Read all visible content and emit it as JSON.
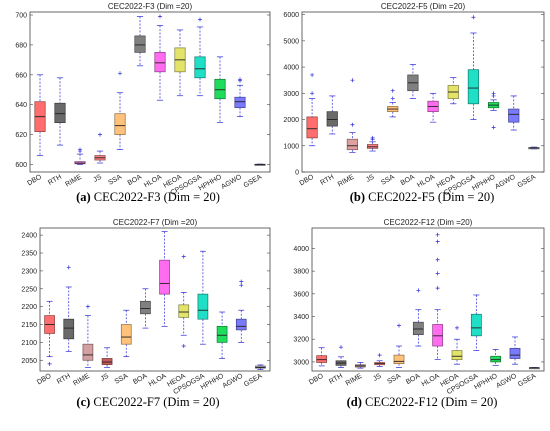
{
  "chart_data": [
    {
      "type": "box",
      "title": "CEC2022-F3 (Dim =20)",
      "caption_label": "(a)",
      "caption_text": "CEC2022-F3 (Dim = 20)",
      "categories": [
        "DBO",
        "RTH",
        "RIME",
        "JS",
        "SSA",
        "BOA",
        "HLOA",
        "HEOA",
        "CPSOGSA",
        "HPHHO",
        "AGWO",
        "GSEA"
      ],
      "ylim": [
        595,
        702
      ],
      "yticks": [
        600,
        620,
        640,
        660,
        680,
        700
      ],
      "boxes": [
        {
          "q1": 622,
          "median": 632,
          "q3": 642,
          "wl": 606,
          "wh": 660,
          "outliers": []
        },
        {
          "q1": 628,
          "median": 634,
          "q3": 641,
          "wl": 613,
          "wh": 658,
          "outliers": []
        },
        {
          "q1": 600.5,
          "median": 601,
          "q3": 602,
          "wl": 600,
          "wh": 607,
          "outliers": [
            609,
            610
          ]
        },
        {
          "q1": 603,
          "median": 604.5,
          "q3": 606,
          "wl": 601,
          "wh": 609,
          "outliers": [
            620
          ]
        },
        {
          "q1": 620,
          "median": 626,
          "q3": 634,
          "wl": 610,
          "wh": 648,
          "outliers": [
            661
          ]
        },
        {
          "q1": 675,
          "median": 680,
          "q3": 686,
          "wl": 666,
          "wh": 699,
          "outliers": []
        },
        {
          "q1": 662,
          "median": 668,
          "q3": 675,
          "wl": 643,
          "wh": 693,
          "outliers": [
            699
          ]
        },
        {
          "q1": 662,
          "median": 670,
          "q3": 678,
          "wl": 646,
          "wh": 690,
          "outliers": []
        },
        {
          "q1": 658,
          "median": 664,
          "q3": 672,
          "wl": 646,
          "wh": 692,
          "outliers": [
            697
          ]
        },
        {
          "q1": 644,
          "median": 650,
          "q3": 657,
          "wl": 628,
          "wh": 672,
          "outliers": []
        },
        {
          "q1": 638,
          "median": 642,
          "q3": 645,
          "wl": 632,
          "wh": 653,
          "outliers": [
            656,
            657
          ]
        },
        {
          "q1": 599.8,
          "median": 600,
          "q3": 600.2,
          "wl": 599.7,
          "wh": 600.3,
          "outliers": []
        }
      ],
      "colors": [
        "#ff6e6e",
        "#6a6a6a",
        "#ff8fe2",
        "#ff8080",
        "#ffc27a",
        "#808080",
        "#ff6cf0",
        "#e3e36a",
        "#1fe0c6",
        "#1fdc5c",
        "#7a7aff",
        "#aaaaaa"
      ]
    },
    {
      "type": "box",
      "title": "CEC2022-F5 (Dim =20)",
      "caption_label": "(b)",
      "caption_text": "CEC2022-F5 (Dim = 20)",
      "categories": [
        "DBO",
        "RTH",
        "RIME",
        "JS",
        "SSA",
        "BOA",
        "HLOA",
        "HEOA",
        "CPSOGSA",
        "HPHHO",
        "AGWO",
        "GSEA"
      ],
      "ylim": [
        0,
        6100
      ],
      "yticks": [
        0,
        1000,
        2000,
        3000,
        4000,
        5000,
        6000
      ],
      "boxes": [
        {
          "q1": 1300,
          "median": 1650,
          "q3": 2100,
          "wl": 1000,
          "wh": 2800,
          "outliers": [
            3000,
            3700
          ]
        },
        {
          "q1": 1750,
          "median": 2000,
          "q3": 2300,
          "wl": 1450,
          "wh": 2900,
          "outliers": []
        },
        {
          "q1": 850,
          "median": 1000,
          "q3": 1250,
          "wl": 750,
          "wh": 1500,
          "outliers": [
            1800,
            3500
          ]
        },
        {
          "q1": 900,
          "median": 960,
          "q3": 1050,
          "wl": 800,
          "wh": 1150,
          "outliers": [
            1250,
            1300
          ]
        },
        {
          "q1": 2300,
          "median": 2400,
          "q3": 2500,
          "wl": 2100,
          "wh": 2650,
          "outliers": [
            2800,
            3100
          ]
        },
        {
          "q1": 3100,
          "median": 3400,
          "q3": 3700,
          "wl": 2800,
          "wh": 4100,
          "outliers": []
        },
        {
          "q1": 2300,
          "median": 2500,
          "q3": 2700,
          "wl": 1900,
          "wh": 3000,
          "outliers": []
        },
        {
          "q1": 2800,
          "median": 3050,
          "q3": 3300,
          "wl": 2600,
          "wh": 3600,
          "outliers": []
        },
        {
          "q1": 2600,
          "median": 3200,
          "q3": 3900,
          "wl": 2000,
          "wh": 5300,
          "outliers": [
            5900
          ]
        },
        {
          "q1": 2450,
          "median": 2550,
          "q3": 2650,
          "wl": 2350,
          "wh": 2750,
          "outliers": [
            1700,
            2900,
            3000
          ]
        },
        {
          "q1": 1900,
          "median": 2200,
          "q3": 2400,
          "wl": 1600,
          "wh": 2900,
          "outliers": []
        },
        {
          "q1": 900,
          "median": 920,
          "q3": 930,
          "wl": 880,
          "wh": 950,
          "outliers": []
        }
      ],
      "colors": [
        "#ff6e6e",
        "#6a6a6a",
        "#e0a0a0",
        "#ff8080",
        "#ffc27a",
        "#808080",
        "#ff6cf0",
        "#e3e36a",
        "#1fe0c6",
        "#1fdc5c",
        "#7a7aff",
        "#aaaaaa"
      ]
    },
    {
      "type": "box",
      "title": "CEC2022-F7 (Dim =20)",
      "caption_label": "(c)",
      "caption_text": "CEC2022-F7 (Dim = 20)",
      "categories": [
        "DBO",
        "RTH",
        "RIME",
        "JS",
        "SSA",
        "BOA",
        "HLOA",
        "HEOA",
        "CPSOGSA",
        "HPHHO",
        "AGWO",
        "GSEA"
      ],
      "ylim": [
        2020,
        2420
      ],
      "yticks": [
        2050,
        2100,
        2150,
        2200,
        2250,
        2300,
        2350,
        2400
      ],
      "boxes": [
        {
          "q1": 2125,
          "median": 2150,
          "q3": 2175,
          "wl": 2060,
          "wh": 2215,
          "outliers": [
            2040
          ]
        },
        {
          "q1": 2110,
          "median": 2140,
          "q3": 2165,
          "wl": 2075,
          "wh": 2255,
          "outliers": [
            2310
          ]
        },
        {
          "q1": 2050,
          "median": 2065,
          "q3": 2095,
          "wl": 2030,
          "wh": 2175,
          "outliers": [
            2200
          ]
        },
        {
          "q1": 2038,
          "median": 2045,
          "q3": 2055,
          "wl": 2030,
          "wh": 2085,
          "outliers": []
        },
        {
          "q1": 2095,
          "median": 2115,
          "q3": 2150,
          "wl": 2060,
          "wh": 2190,
          "outliers": []
        },
        {
          "q1": 2180,
          "median": 2195,
          "q3": 2215,
          "wl": 2140,
          "wh": 2250,
          "outliers": []
        },
        {
          "q1": 2235,
          "median": 2265,
          "q3": 2330,
          "wl": 2145,
          "wh": 2410,
          "outliers": []
        },
        {
          "q1": 2170,
          "median": 2185,
          "q3": 2205,
          "wl": 2120,
          "wh": 2240,
          "outliers": [
            2090,
            2340
          ]
        },
        {
          "q1": 2165,
          "median": 2190,
          "q3": 2235,
          "wl": 2095,
          "wh": 2355,
          "outliers": []
        },
        {
          "q1": 2100,
          "median": 2120,
          "q3": 2145,
          "wl": 2055,
          "wh": 2185,
          "outliers": []
        },
        {
          "q1": 2135,
          "median": 2145,
          "q3": 2165,
          "wl": 2100,
          "wh": 2190,
          "outliers": [
            2260,
            2270
          ]
        },
        {
          "q1": 2028,
          "median": 2030,
          "q3": 2034,
          "wl": 2024,
          "wh": 2037,
          "outliers": []
        }
      ],
      "colors": [
        "#ff6e6e",
        "#6a6a6a",
        "#d2a0a0",
        "#c85a5a",
        "#ffc27a",
        "#808080",
        "#ff6cf0",
        "#e3e36a",
        "#1fe0c6",
        "#1fdc5c",
        "#7a7aff",
        "#aaaaaa"
      ]
    },
    {
      "type": "box",
      "title": "CEC2022-F12 (Dim =20)",
      "caption_label": "(d)",
      "caption_text": "CEC2022-F12 (Dim = 20)",
      "categories": [
        "DBO",
        "RTH",
        "RIME",
        "JS",
        "SSA",
        "BOA",
        "HLOA",
        "HEOA",
        "CPSOGSA",
        "HPHHO",
        "AGWO",
        "GSEA"
      ],
      "ylim": [
        2920,
        4180
      ],
      "yticks": [
        3000,
        3200,
        3400,
        3600,
        3800,
        4000
      ],
      "boxes": [
        {
          "q1": 2995,
          "median": 3020,
          "q3": 3055,
          "wl": 2965,
          "wh": 3125,
          "outliers": []
        },
        {
          "q1": 2970,
          "median": 2990,
          "q3": 3010,
          "wl": 2950,
          "wh": 3045,
          "outliers": [
            3130
          ]
        },
        {
          "q1": 2955,
          "median": 2965,
          "q3": 2975,
          "wl": 2945,
          "wh": 2995,
          "outliers": []
        },
        {
          "q1": 2975,
          "median": 2985,
          "q3": 2995,
          "wl": 2960,
          "wh": 3010,
          "outliers": [
            3060
          ]
        },
        {
          "q1": 2985,
          "median": 3005,
          "q3": 3060,
          "wl": 2950,
          "wh": 3140,
          "outliers": [
            3320
          ]
        },
        {
          "q1": 3240,
          "median": 3290,
          "q3": 3350,
          "wl": 3140,
          "wh": 3460,
          "outliers": [
            3630
          ]
        },
        {
          "q1": 3140,
          "median": 3230,
          "q3": 3330,
          "wl": 3020,
          "wh": 3460,
          "outliers": [
            3650,
            3780,
            3900,
            4060,
            4120
          ]
        },
        {
          "q1": 3020,
          "median": 3050,
          "q3": 3100,
          "wl": 2980,
          "wh": 3200,
          "outliers": [
            3300
          ]
        },
        {
          "q1": 3230,
          "median": 3300,
          "q3": 3420,
          "wl": 3100,
          "wh": 3590,
          "outliers": []
        },
        {
          "q1": 3000,
          "median": 3020,
          "q3": 3050,
          "wl": 2970,
          "wh": 3110,
          "outliers": []
        },
        {
          "q1": 3030,
          "median": 3060,
          "q3": 3120,
          "wl": 2980,
          "wh": 3220,
          "outliers": []
        },
        {
          "q1": 2945,
          "median": 2948,
          "q3": 2950,
          "wl": 2942,
          "wh": 2952,
          "outliers": []
        }
      ],
      "colors": [
        "#ff6e6e",
        "#6a6a6a",
        "#c8a0a0",
        "#ff8080",
        "#ffc27a",
        "#808080",
        "#ff6cf0",
        "#e3e36a",
        "#1fe0c6",
        "#1fdc5c",
        "#7a7aff",
        "#aaaaaa"
      ]
    }
  ]
}
